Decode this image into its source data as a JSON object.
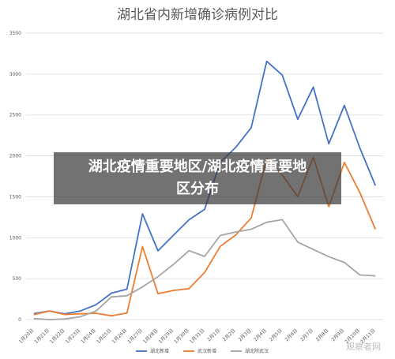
{
  "chart_data": {
    "type": "line",
    "title": "湖北省内新增确诊病例对比",
    "categories": [
      "1月20日",
      "1月21日",
      "1月22日",
      "1月23日",
      "1月24日",
      "1月25日",
      "1月26日",
      "1月27日",
      "1月28日",
      "1月29日",
      "1月30日",
      "1月31日",
      "2月1日",
      "2月2日",
      "2月3日",
      "2月4日",
      "2月5日",
      "2月6日",
      "2月7日",
      "2月8日",
      "2月9日",
      "2月10日",
      "2月11日"
    ],
    "ylim": [
      0,
      3500
    ],
    "yticks": [
      0,
      500,
      1000,
      1500,
      2000,
      2500,
      3000,
      3500
    ],
    "grid": true,
    "legend_position": "bottom",
    "series": [
      {
        "name": "湖北新增",
        "color": "#4472c4",
        "values": [
          72,
          105,
          69,
          105,
          180,
          323,
          371,
          1291,
          840,
          1032,
          1220,
          1347,
          1921,
          2103,
          2345,
          3156,
          2987,
          2447,
          2841,
          2147,
          2618,
          2097,
          1638
        ]
      },
      {
        "name": "武汉新增",
        "color": "#ed7d31",
        "values": [
          60,
          105,
          62,
          70,
          77,
          46,
          80,
          892,
          315,
          356,
          378,
          576,
          894,
          1033,
          1242,
          1967,
          1766,
          1501,
          1985,
          1379,
          1920,
          1552,
          1104
        ]
      },
      {
        "name": "湖北除武汉",
        "color": "#a5a5a5",
        "values": [
          12,
          0,
          7,
          35,
          103,
          277,
          291,
          399,
          525,
          676,
          842,
          771,
          1027,
          1070,
          1103,
          1189,
          1221,
          946,
          856,
          768,
          698,
          545,
          534
        ]
      }
    ]
  },
  "overlay": {
    "line1": "湖北疫情重要地区/湖北疫情重要地",
    "line2": "区分布"
  },
  "watermark": "观察者网"
}
